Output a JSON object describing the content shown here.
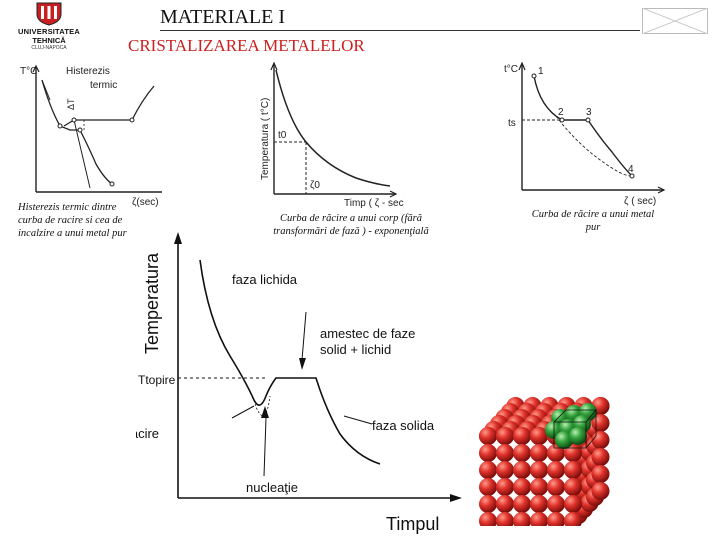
{
  "header": {
    "logo": {
      "line1": "UNIVERSITATEA",
      "line2": "TEHNICĂ",
      "line3": "CLUJ-NAPOCA"
    },
    "title": "MATERIALE I",
    "subtitle": "CRISTALIZAREA METALELOR"
  },
  "figures": {
    "hysteresis": {
      "y_axis": "T°C",
      "label_line1": "Histerezis",
      "label_line2": "termic",
      "delta_label": "ΔT",
      "x_axis": "ζ(sec)",
      "caption": "Histerezis termic dintre curba de racire si cea de incalzire a unui metal pur"
    },
    "exponential": {
      "y_axis": "Temperatura ( t°C)",
      "t0": "t0",
      "tau0": "ζ0",
      "x_axis": "Timp ( ζ - sec)",
      "caption": "Curba de răcire a unui corp (fără transformări de fază ) - exponenţială"
    },
    "pure_metal": {
      "y_axis": "t°C",
      "p1": "1",
      "p2": "2",
      "p3": "3",
      "p4": "4",
      "ts": "ts",
      "x_axis": "ζ ( sec)",
      "caption": "Curba de răcire a unui metal pur"
    },
    "main": {
      "y_axis": "Temperatura",
      "t_topire": "Ttopire",
      "liquid": "faza lichida",
      "mix_line1": "amestec de faze",
      "mix_line2": "solid + lichid",
      "supercool": "supraracire",
      "solid": "faza solida",
      "nucleation": "nucleaţie",
      "x_axis": "Timpul"
    }
  },
  "colors": {
    "subtitle": "#cc1f1f",
    "sphere_red": "#e0322b",
    "sphere_green": "#33a33c"
  }
}
